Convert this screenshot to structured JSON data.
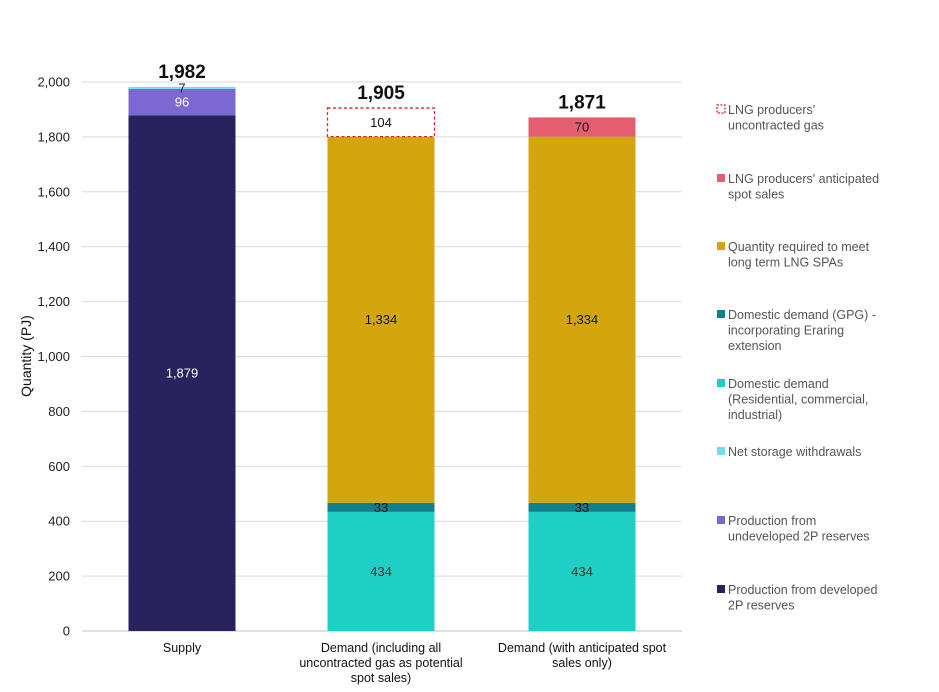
{
  "chart_data": {
    "type": "bar",
    "stacked": true,
    "title": "",
    "xlabel": "",
    "ylabel": "Quantity (PJ)",
    "ylim": [
      0,
      2000
    ],
    "yticks": [
      "0",
      "200",
      "400",
      "600",
      "800",
      "1,000",
      "1,200",
      "1,400",
      "1,600",
      "1,800",
      "2,000"
    ],
    "grid": true,
    "legend_position": "right",
    "categories": [
      [
        "Supply"
      ],
      [
        "Demand (including all",
        "uncontracted gas as potential",
        "spot sales)"
      ],
      [
        "Demand (with anticipated spot",
        "sales only)"
      ]
    ],
    "totals": [
      1982,
      1905,
      1871
    ],
    "total_labels": [
      "1,982",
      "1,905",
      "1,871"
    ],
    "series": [
      {
        "name": "Production from developed 2P reserves",
        "legend_lines": [
          "Production from developed",
          "2P reserves"
        ],
        "color": "#28225f",
        "label_color": "#ffffff",
        "values": [
          1879,
          0,
          0
        ],
        "labels": [
          "1,879",
          "",
          ""
        ]
      },
      {
        "name": "Production from undeveloped 2P reserves",
        "legend_lines": [
          "Production from",
          "undeveloped 2P reserves"
        ],
        "color": "#7b68d1",
        "label_color": "#ffffff",
        "values": [
          96,
          0,
          0
        ],
        "labels": [
          "96",
          "",
          ""
        ]
      },
      {
        "name": "Net storage withdrawals",
        "legend_lines": [
          "Net storage withdrawals"
        ],
        "color": "#6fdff0",
        "label_color": "#222222",
        "values": [
          7,
          0,
          0
        ],
        "labels": [
          "7",
          "",
          ""
        ]
      },
      {
        "name": "Domestic demand (Residential, commercial, industrial)",
        "legend_lines": [
          "Domestic demand",
          "(Residential, commercial,",
          "industrial)"
        ],
        "color": "#1ecfc5",
        "label_color": "#333333",
        "values": [
          0,
          434,
          434
        ],
        "labels": [
          "",
          "434",
          "434"
        ]
      },
      {
        "name": "Domestic demand (GPG) - incorporating Eraring extension",
        "legend_lines": [
          "Domestic demand (GPG) -",
          "incorporating Eraring",
          "extension"
        ],
        "color": "#137f8c",
        "label_color": "#111111",
        "values": [
          0,
          33,
          33
        ],
        "labels": [
          "",
          "33",
          "33"
        ]
      },
      {
        "name": "Quantity required to meet long term LNG SPAs",
        "legend_lines": [
          "Quantity required to meet",
          "long term LNG SPAs"
        ],
        "color": "#d4a60d",
        "label_color": "#111111",
        "values": [
          0,
          1334,
          1334
        ],
        "labels": [
          "",
          "1,334",
          "1,334"
        ]
      },
      {
        "name": "LNG producers' anticipated spot sales",
        "legend_lines": [
          "LNG producers' anticipated",
          "spot sales"
        ],
        "color": "#e45e70",
        "label_color": "#111111",
        "values": [
          0,
          0,
          70
        ],
        "labels": [
          "",
          "",
          "70"
        ]
      },
      {
        "name": "LNG producers' uncontracted gas",
        "legend_lines": [
          "LNG producers'",
          "uncontracted gas"
        ],
        "color": "#dd2222",
        "label_color": "#111111",
        "dashed": true,
        "values": [
          0,
          104,
          0
        ],
        "labels": [
          "",
          "104",
          ""
        ]
      }
    ]
  }
}
